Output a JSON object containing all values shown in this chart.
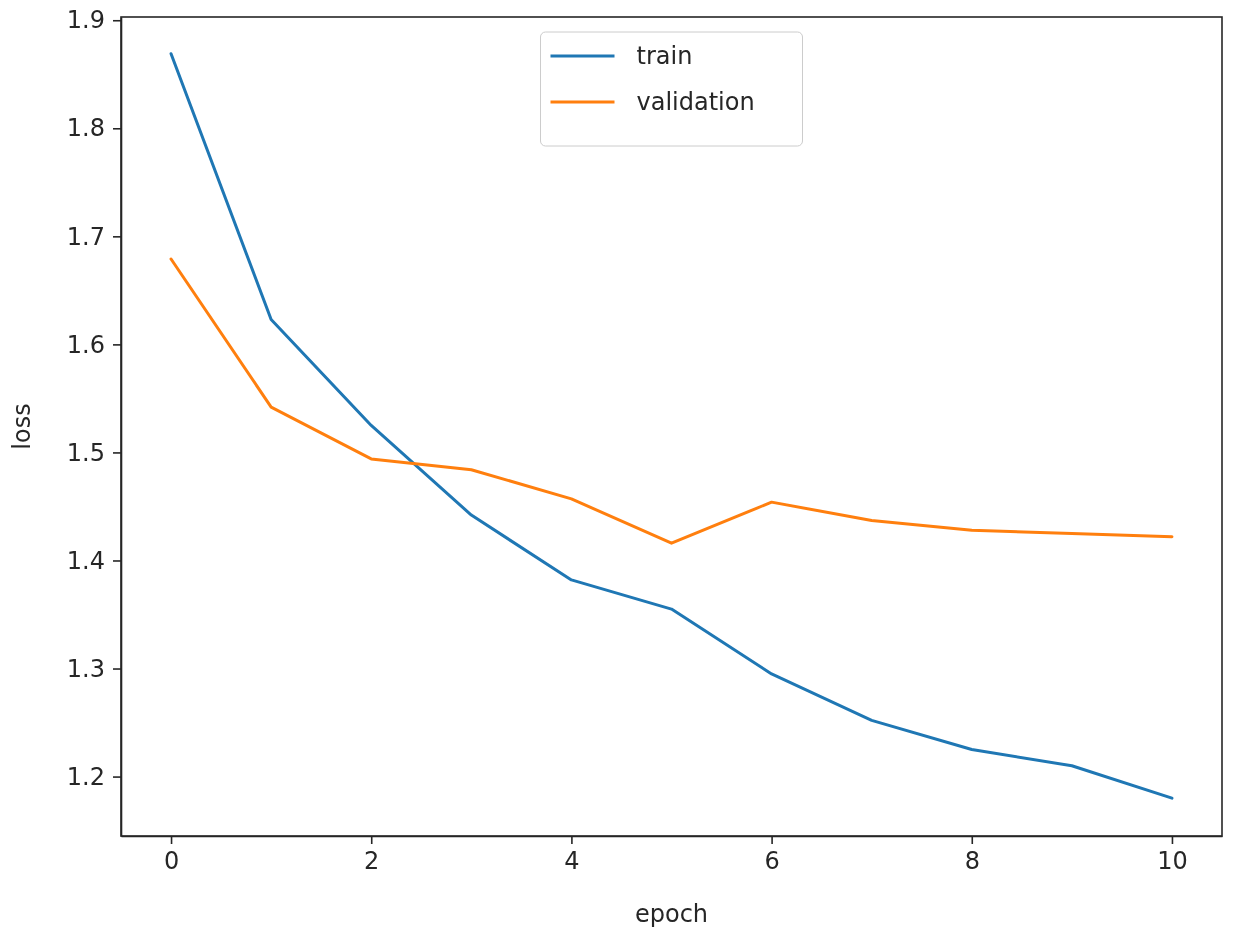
{
  "chart_data": {
    "type": "line",
    "xlabel": "epoch",
    "ylabel": "loss",
    "x": [
      0,
      1,
      2,
      3,
      4,
      5,
      6,
      7,
      8,
      9,
      10
    ],
    "series": [
      {
        "name": "train",
        "color": "#1f77b4",
        "values": [
          1.869,
          1.623,
          1.525,
          1.442,
          1.382,
          1.355,
          1.295,
          1.252,
          1.225,
          1.21,
          1.18
        ]
      },
      {
        "name": "validation",
        "color": "#ff7f0e",
        "values": [
          1.679,
          1.542,
          1.494,
          1.484,
          1.457,
          1.416,
          1.454,
          1.437,
          1.428,
          1.425,
          1.422
        ]
      }
    ],
    "xlim": [
      -0.5,
      10.5
    ],
    "xticks": [
      0,
      2,
      4,
      6,
      8,
      10
    ],
    "ylim": [
      1.145,
      1.903
    ],
    "yticks": [
      1.2,
      1.3,
      1.4,
      1.5,
      1.6,
      1.7,
      1.8,
      1.9
    ],
    "grid": false,
    "legend": "top",
    "marker": "none",
    "line_style": "solid"
  }
}
